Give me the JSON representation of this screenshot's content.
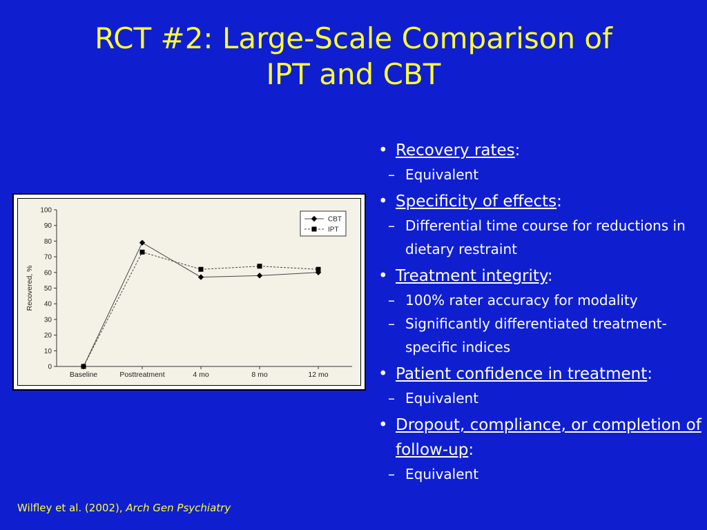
{
  "title": {
    "line1": "RCT #2: Large-Scale Comparison of",
    "line2": "IPT and CBT"
  },
  "chart_data": {
    "type": "line",
    "categories": [
      "Baseline",
      "Posttreatment",
      "4 mo",
      "8 mo",
      "12 mo"
    ],
    "series": [
      {
        "name": "CBT",
        "marker": "diamond",
        "dash": "solid",
        "values": [
          0,
          79,
          57,
          58,
          60
        ]
      },
      {
        "name": "IPT",
        "marker": "square",
        "dash": "dashed",
        "values": [
          0,
          73,
          62,
          64,
          62
        ]
      }
    ],
    "ylabel": "Recovered, %",
    "ylim": [
      0,
      100
    ],
    "yticks": [
      0,
      10,
      20,
      30,
      40,
      50,
      60,
      70,
      80,
      90,
      100
    ],
    "legend": "top-right",
    "grid": false
  },
  "bullets": [
    {
      "head": "Recovery rates",
      "tail": ":",
      "subs": [
        "Equivalent"
      ]
    },
    {
      "head": "Specificity of effects",
      "tail": ":",
      "subs": [
        "Differential time course for reductions in dietary restraint"
      ]
    },
    {
      "head": "Treatment integrity",
      "tail": ":",
      "subs": [
        "100% rater accuracy for modality",
        "Significantly differentiated treatment-specific indices"
      ]
    },
    {
      "head": "Patient confidence in treatment",
      "tail": ":",
      "subs": [
        "Equivalent"
      ]
    },
    {
      "head": "Dropout, compliance, or completion of follow-up",
      "tail": ":",
      "subs": [
        "Equivalent"
      ]
    }
  ],
  "citation": {
    "authors": "Wilfley et al. (2002), ",
    "journal": "Arch Gen Psychiatry"
  },
  "colors": {
    "background": "#0f1fd0",
    "title": "#ffff33",
    "text": "#ffffff"
  }
}
